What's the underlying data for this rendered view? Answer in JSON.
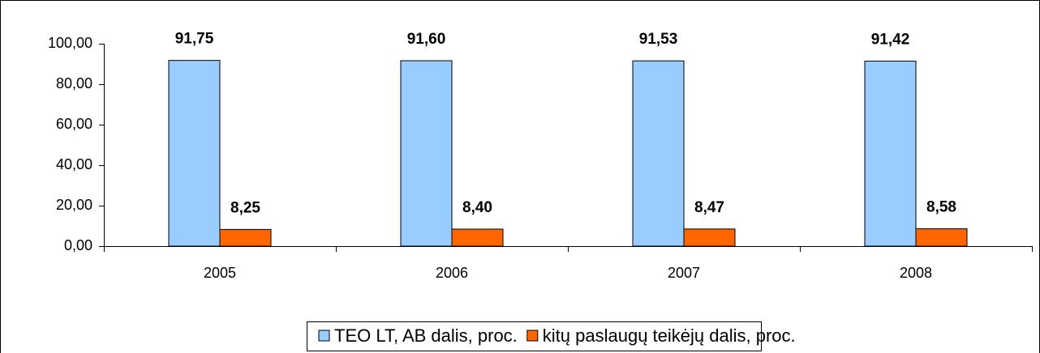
{
  "chart_data": {
    "type": "bar",
    "categories": [
      "2005",
      "2006",
      "2007",
      "2008"
    ],
    "series": [
      {
        "name": "TEO LT, AB dalis, proc.",
        "color": "#99ccff",
        "values": [
          91.75,
          91.6,
          91.53,
          91.42
        ],
        "value_labels": [
          "91,75",
          "91,60",
          "91,53",
          "91,42"
        ]
      },
      {
        "name": "kitų paslaugų teikėjų dalis, proc.",
        "color": "#ff6600",
        "values": [
          8.25,
          8.4,
          8.47,
          8.58
        ],
        "value_labels": [
          "8,25",
          "8,40",
          "8,47",
          "8,58"
        ]
      }
    ],
    "ylim": [
      0,
      100
    ],
    "yticks": [
      {
        "value": 0,
        "label": "0,00"
      },
      {
        "value": 20,
        "label": "20,00"
      },
      {
        "value": 40,
        "label": "40,00"
      },
      {
        "value": 60,
        "label": "60,00"
      },
      {
        "value": 80,
        "label": "80,00"
      },
      {
        "value": 100,
        "label": "100,00"
      }
    ],
    "legend": "bottom"
  }
}
